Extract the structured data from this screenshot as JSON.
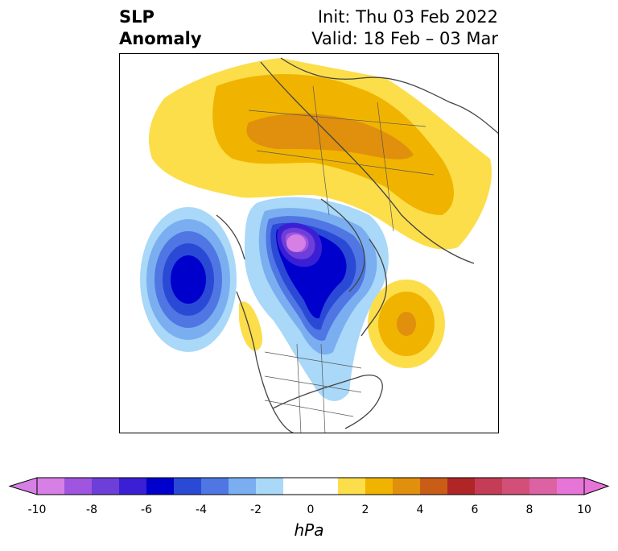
{
  "title": {
    "left_line1": "SLP",
    "left_line2": "Anomaly",
    "right_line1": "Init: Thu 03 Feb 2022",
    "right_line2": "Valid: 18 Feb – 03 Mar"
  },
  "map": {
    "projection": "north-polar-stereographic",
    "region": "North America / Arctic / Eurasia",
    "features": [
      {
        "name": "eurasia-high",
        "sign": "positive",
        "peak_hPa": 3
      },
      {
        "name": "arctic-low",
        "sign": "negative",
        "peak_hPa": -9
      },
      {
        "name": "north-pacific-low",
        "sign": "negative",
        "peak_hPa": -6
      },
      {
        "name": "north-atlantic-high",
        "sign": "positive",
        "peak_hPa": 4
      },
      {
        "name": "pacific-northwest-high",
        "sign": "positive",
        "peak_hPa": 2
      }
    ]
  },
  "colorbar": {
    "unit": "hPa",
    "extend": "both",
    "colors": [
      "#d67fe4",
      "#9f55e0",
      "#6e3ed8",
      "#3b1fd4",
      "#0000cd",
      "#2a4ad6",
      "#4f76e3",
      "#7aaef0",
      "#a9d8f8",
      "#ffffff",
      "#ffffff",
      "#fcde4a",
      "#f0b400",
      "#e0900d",
      "#c95d18",
      "#b02626",
      "#c43c56",
      "#d25077",
      "#dc62a3",
      "#e775d7"
    ],
    "ticks": [
      "-10",
      "-8",
      "-6",
      "-4",
      "-2",
      "0",
      "2",
      "4",
      "6",
      "8",
      "10"
    ]
  }
}
